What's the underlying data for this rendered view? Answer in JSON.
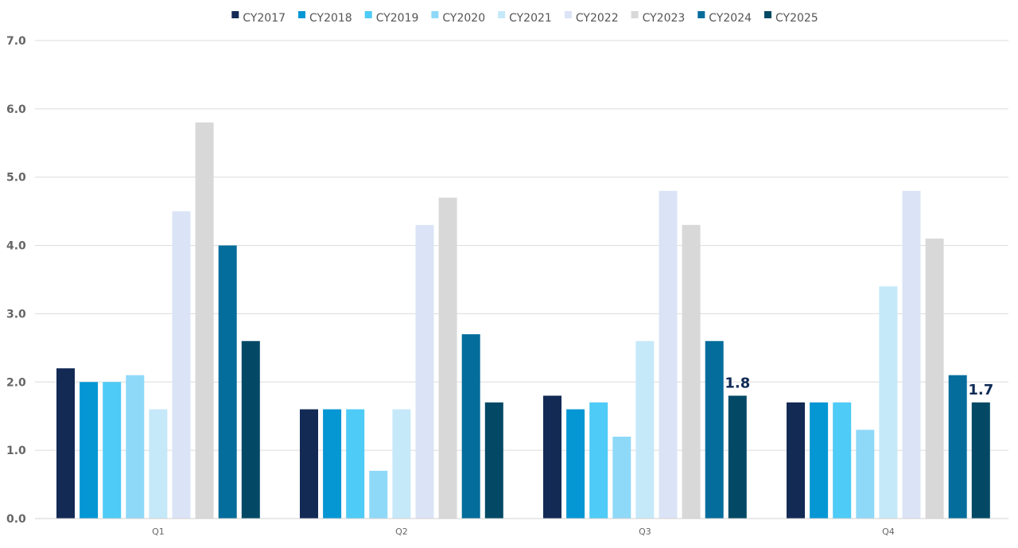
{
  "chart_data": {
    "type": "bar",
    "title": "",
    "xlabel": "",
    "ylabel": "",
    "ylim": [
      0,
      7
    ],
    "yticks": [
      0,
      1,
      2,
      3,
      4,
      5,
      6,
      7
    ],
    "ytick_labels": [
      "0.0",
      "1.0",
      "2.0",
      "3.0",
      "4.0",
      "5.0",
      "6.0",
      "7.0"
    ],
    "grid": true,
    "legend_position": "top-center",
    "categories": [
      "Q1",
      "Q2",
      "Q3",
      "Q4"
    ],
    "series": [
      {
        "name": "CY2017",
        "color": "#132a55",
        "values": [
          2.2,
          1.6,
          1.8,
          1.7
        ]
      },
      {
        "name": "CY2018",
        "color": "#0597d4",
        "values": [
          2.0,
          1.6,
          1.6,
          1.7
        ]
      },
      {
        "name": "CY2019",
        "color": "#4ecbf6",
        "values": [
          2.0,
          1.6,
          1.7,
          1.7
        ]
      },
      {
        "name": "CY2020",
        "color": "#8fd9f8",
        "values": [
          2.1,
          0.7,
          1.2,
          1.3
        ]
      },
      {
        "name": "CY2021",
        "color": "#c6e9f9",
        "values": [
          1.6,
          1.6,
          2.6,
          3.4
        ]
      },
      {
        "name": "CY2022",
        "color": "#dbe4f6",
        "values": [
          4.5,
          4.3,
          4.8,
          4.8
        ]
      },
      {
        "name": "CY2023",
        "color": "#d8d8d8",
        "values": [
          5.8,
          4.7,
          4.3,
          4.1
        ]
      },
      {
        "name": "CY2024",
        "color": "#046d9c",
        "values": [
          4.0,
          2.7,
          2.6,
          2.1
        ]
      },
      {
        "name": "CY2025",
        "color": "#034966",
        "values": [
          2.6,
          1.7,
          1.8,
          1.7
        ]
      }
    ],
    "data_labels": [
      {
        "series": "CY2025",
        "category": "Q3",
        "text": "1.8"
      },
      {
        "series": "CY2025",
        "category": "Q4",
        "text": "1.7"
      }
    ]
  }
}
